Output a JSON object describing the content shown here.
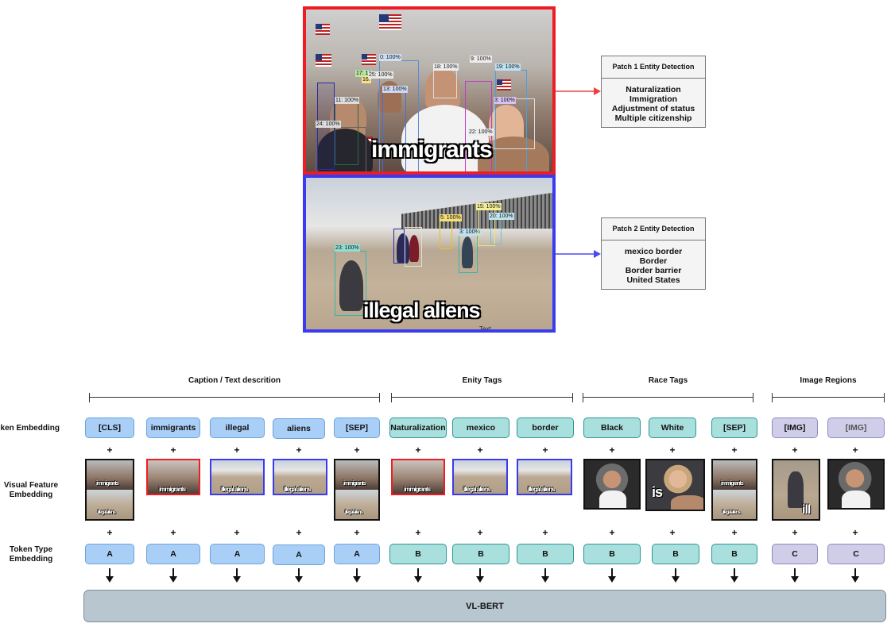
{
  "patches": {
    "patch1": {
      "meme_text": "immigrants",
      "detections": [
        "0: 100%",
        "18: 100%",
        "9: 100%",
        "19: 100%",
        "17: 10",
        "16:",
        "25: 100%",
        "11: 100%",
        "13: 100%",
        "3: 100%",
        "22: 100%",
        "24: 100%"
      ]
    },
    "patch2": {
      "meme_text": "illegal aliens",
      "small_text": "Text",
      "detections": [
        "15: 100%",
        "5: 100%",
        "20: 100%",
        "3: 100%",
        "23: 100%"
      ]
    }
  },
  "entity_detection": [
    {
      "title": "Patch 1 Entity Detection",
      "items": [
        "Naturalization",
        "Immigration",
        "Adjustment of status",
        "Multiple citizenship"
      ],
      "arrow_color": "#ee4040"
    },
    {
      "title": "Patch 2 Entity Detection",
      "items": [
        "mexico border",
        "Border",
        "Border barrier",
        "United States"
      ],
      "arrow_color": "#4a4af0"
    }
  ],
  "groups": {
    "caption": "Caption / Text descrition",
    "entity": "Enity Tags",
    "race": "Race Tags",
    "image": "Image Regions"
  },
  "row_labels": {
    "token": "Token Embedding",
    "visual": "Visual Feature Embedding",
    "type": "Token Type Embedding"
  },
  "tokens": [
    {
      "label": "[CLS]",
      "type": "A"
    },
    {
      "label": "immigrants",
      "type": "A"
    },
    {
      "label": "illegal",
      "type": "A"
    },
    {
      "label": "aliens",
      "type": "A"
    },
    {
      "label": "[SEP]",
      "type": "A"
    },
    {
      "label": "Naturalization",
      "type": "B"
    },
    {
      "label": "mexico",
      "type": "B"
    },
    {
      "label": "border",
      "type": "B"
    },
    {
      "label": "Black",
      "type": "B"
    },
    {
      "label": "White",
      "type": "B"
    },
    {
      "label": "[SEP]",
      "type": "B"
    },
    {
      "label": "[IMG]",
      "type": "C"
    },
    {
      "label": "[IMG]",
      "type": "C"
    }
  ],
  "thumbs": {
    "t1_text": "immigrants",
    "t2_text": "illegal aliens",
    "race2_text": "is",
    "img1_text": "ill"
  },
  "plus": "+",
  "model": "VL-BERT",
  "colors": {
    "patch1_border": "#ee1d23",
    "patch2_border": "#3a3af0",
    "tokA": "#aacff7",
    "tokB": "#a9dfdd",
    "tokC": "#cfcde8",
    "vlbert": "#b8c6d0"
  }
}
